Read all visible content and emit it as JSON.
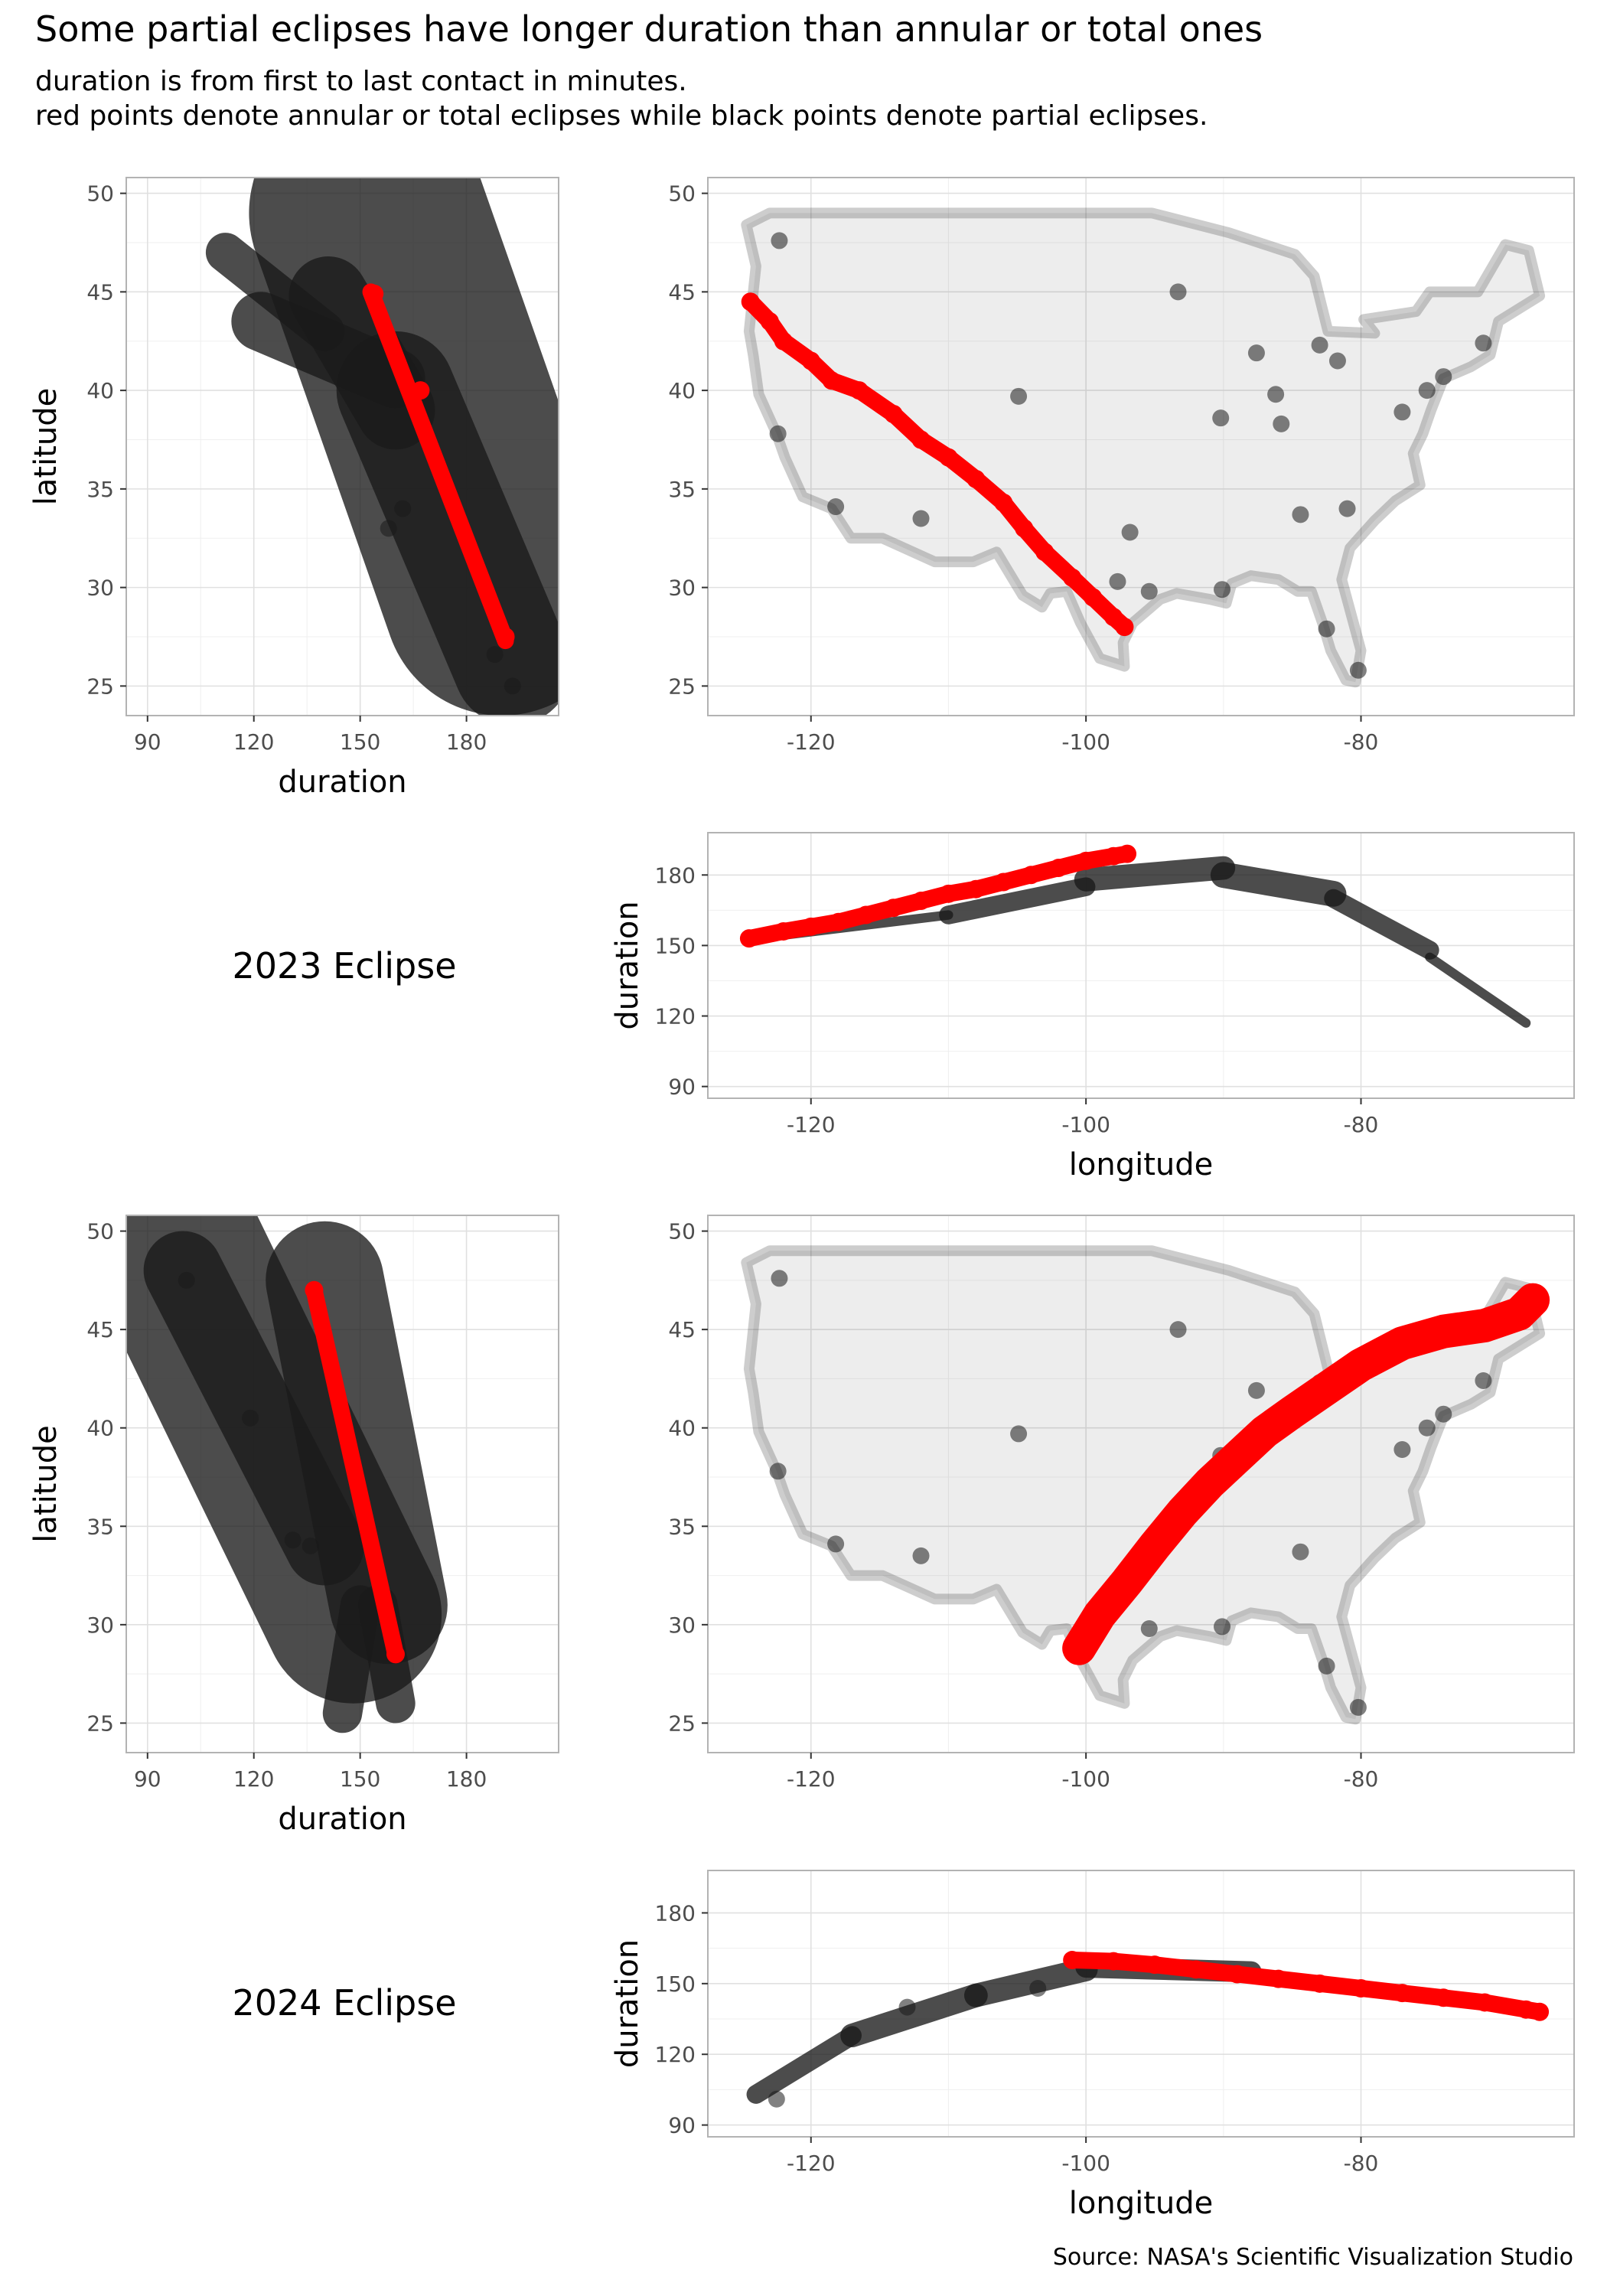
{
  "title": "Some partial eclipses have longer duration than annular or total ones",
  "subtitle": [
    "duration is from first to last contact in minutes.",
    "red points denote annular or total eclipses while black points denote partial eclipses."
  ],
  "caption": "Source: NASA's Scientific Visualization Studio",
  "year_labels": [
    "2023 Eclipse",
    "2024 Eclipse"
  ],
  "colors": {
    "partial": "#1a1a1a",
    "annular_or_total": "#ff0000",
    "grid": "#e0e0e0",
    "panel_border": "#b3b3b3"
  },
  "chart_data": [
    {
      "type": "scatter",
      "eclipse": "2023 Eclipse",
      "x_var": "duration",
      "y_var": "latitude",
      "xlabel": "duration",
      "ylabel": "latitude",
      "xlim": [
        84,
        206
      ],
      "ylim": [
        23.5,
        50.8
      ],
      "xticks": [
        90,
        120,
        150,
        180
      ],
      "yticks": [
        25,
        30,
        35,
        40,
        45,
        50
      ],
      "series": [
        {
          "name": "partial",
          "bands": [
            {
              "a": [
                152,
                49
              ],
              "b": [
                190,
                29.5
              ],
              "width": 12
            },
            {
              "a": [
                141,
                44.8
              ],
              "b": [
                160,
                39
              ],
              "width": 4
            },
            {
              "a": [
                122,
                43.5
              ],
              "b": [
                160,
                40.6
              ],
              "width": 3
            },
            {
              "a": [
                160,
                40
              ],
              "b": [
                193,
                26
              ],
              "width": 6
            },
            {
              "a": [
                112,
                47
              ],
              "b": [
                140,
                43
              ],
              "width": 2
            }
          ],
          "values": [
            [
              162,
              34
            ],
            [
              158,
              33
            ],
            [
              188,
              26.6
            ],
            [
              193,
              25
            ]
          ]
        },
        {
          "name": "annular or total",
          "bands": [
            {
              "a": [
                153,
                45
              ],
              "b": [
                191,
                27.3
              ],
              "width": 3
            }
          ],
          "values": [
            [
              154,
              44.9
            ],
            [
              191,
              27.5
            ],
            [
              167,
              40
            ]
          ]
        }
      ]
    },
    {
      "type": "scatter",
      "eclipse": "2023 Eclipse",
      "x_var": "longitude",
      "y_var": "latitude",
      "xlabel": "",
      "ylabel": "",
      "xlim": [
        -127.5,
        -64.5
      ],
      "ylim": [
        23.5,
        50.8
      ],
      "xticks": [
        -120,
        -100,
        -80
      ],
      "yticks": [
        25,
        30,
        35,
        40,
        45,
        50
      ],
      "series": [
        {
          "name": "partial",
          "region": "contiguous United States",
          "values": [
            [
              -122.3,
              47.6
            ],
            [
              -122.4,
              37.8
            ],
            [
              -118.2,
              34.1
            ],
            [
              -112,
              33.5
            ],
            [
              -104.9,
              39.7
            ],
            [
              -96.8,
              32.8
            ],
            [
              -95.4,
              29.8
            ],
            [
              -97.7,
              30.3
            ],
            [
              -90.2,
              38.6
            ],
            [
              -87.6,
              41.9
            ],
            [
              -86.2,
              39.8
            ],
            [
              -84.4,
              33.7
            ],
            [
              -83,
              42.3
            ],
            [
              -81.7,
              41.5
            ],
            [
              -80.2,
              25.8
            ],
            [
              -75.2,
              40
            ],
            [
              -74,
              40.7
            ],
            [
              -71.1,
              42.4
            ],
            [
              -77,
              38.9
            ],
            [
              -93.3,
              45
            ],
            [
              -90.1,
              29.9
            ],
            [
              -85.8,
              38.3
            ],
            [
              -81,
              34
            ],
            [
              -82.5,
              27.9
            ]
          ]
        },
        {
          "name": "annular or total",
          "values": [
            [
              -124.4,
              44.5
            ],
            [
              -123,
              43.5
            ],
            [
              -122,
              42.5
            ],
            [
              -120,
              41.5
            ],
            [
              -118.5,
              40.5
            ],
            [
              -116.5,
              40
            ],
            [
              -114,
              38.8
            ],
            [
              -112,
              37.5
            ],
            [
              -110,
              36.6
            ],
            [
              -108,
              35.5
            ],
            [
              -106,
              34.3
            ],
            [
              -104.5,
              33
            ],
            [
              -103,
              31.8
            ],
            [
              -101,
              30.5
            ],
            [
              -99.5,
              29.5
            ],
            [
              -98,
              28.5
            ],
            [
              -97.2,
              28
            ]
          ]
        }
      ]
    },
    {
      "type": "scatter",
      "eclipse": "2023 Eclipse",
      "x_var": "longitude",
      "y_var": "duration",
      "xlabel": "longitude",
      "ylabel": "duration",
      "xlim": [
        -127.5,
        -64.5
      ],
      "ylim": [
        85,
        198
      ],
      "xticks": [
        -120,
        -100,
        -80
      ],
      "yticks": [
        90,
        120,
        150,
        180
      ],
      "series": [
        {
          "name": "partial",
          "bands": [
            {
              "a": [
                -124,
                153
              ],
              "b": [
                -110,
                163
              ],
              "width": 4
            },
            {
              "a": [
                -110,
                163
              ],
              "b": [
                -100,
                175
              ],
              "width": 8
            },
            {
              "a": [
                -100,
                178
              ],
              "b": [
                -90,
                183
              ],
              "width": 10
            },
            {
              "a": [
                -90,
                180
              ],
              "b": [
                -82,
                172
              ],
              "width": 11
            },
            {
              "a": [
                -82,
                170
              ],
              "b": [
                -75,
                148
              ],
              "width": 8
            },
            {
              "a": [
                -75,
                145
              ],
              "b": [
                -68,
                117
              ],
              "width": 4
            }
          ]
        },
        {
          "name": "annular or total",
          "values": [
            [
              -124.5,
              153
            ],
            [
              -122,
              156
            ],
            [
              -120,
              158
            ],
            [
              -118,
              160
            ],
            [
              -116,
              163
            ],
            [
              -114,
              166
            ],
            [
              -112,
              169
            ],
            [
              -110,
              172
            ],
            [
              -108,
              174
            ],
            [
              -106,
              177
            ],
            [
              -104,
              180
            ],
            [
              -102,
              183
            ],
            [
              -100,
              186
            ],
            [
              -98,
              188
            ],
            [
              -97,
              189
            ]
          ]
        }
      ]
    },
    {
      "type": "scatter",
      "eclipse": "2024 Eclipse",
      "x_var": "duration",
      "y_var": "latitude",
      "xlabel": "duration",
      "ylabel": "latitude",
      "xlim": [
        84,
        206
      ],
      "ylim": [
        23.5,
        50.8
      ],
      "xticks": [
        90,
        120,
        150,
        180
      ],
      "yticks": [
        25,
        30,
        35,
        40,
        45,
        50
      ],
      "series": [
        {
          "name": "partial",
          "bands": [
            {
              "a": [
                140,
                47.5
              ],
              "b": [
                158,
                31
              ],
              "width": 6
            },
            {
              "a": [
                98,
                49
              ],
              "b": [
                148,
                30.5
              ],
              "width": 9
            },
            {
              "a": [
                100,
                48
              ],
              "b": [
                140,
                34
              ],
              "width": 4
            },
            {
              "a": [
                155,
                31
              ],
              "b": [
                160,
                26
              ],
              "width": 2
            },
            {
              "a": [
                150,
                31
              ],
              "b": [
                145,
                25.5
              ],
              "width": 2
            }
          ],
          "values": [
            [
              101,
              47.5
            ],
            [
              119,
              40.5
            ],
            [
              136,
              34
            ],
            [
              131,
              34.3
            ]
          ]
        },
        {
          "name": "annular or total",
          "bands": [
            {
              "a": [
                137,
                47
              ],
              "b": [
                160,
                28.5
              ],
              "width": 3
            }
          ],
          "values": [
            [
              137,
              47
            ],
            [
              160,
              28.5
            ]
          ]
        }
      ]
    },
    {
      "type": "scatter",
      "eclipse": "2024 Eclipse",
      "x_var": "longitude",
      "y_var": "latitude",
      "xlabel": "",
      "ylabel": "",
      "xlim": [
        -127.5,
        -64.5
      ],
      "ylim": [
        23.5,
        50.8
      ],
      "xticks": [
        -120,
        -100,
        -80
      ],
      "yticks": [
        25,
        30,
        35,
        40,
        45,
        50
      ],
      "series": [
        {
          "name": "partial",
          "region": "contiguous United States",
          "values": [
            [
              -122.3,
              47.6
            ],
            [
              -122.4,
              37.8
            ],
            [
              -118.2,
              34.1
            ],
            [
              -112,
              33.5
            ],
            [
              -104.9,
              39.7
            ],
            [
              -96.8,
              32.8
            ],
            [
              -95.4,
              29.8
            ],
            [
              -90.2,
              38.6
            ],
            [
              -87.6,
              41.9
            ],
            [
              -84.4,
              33.7
            ],
            [
              -83,
              42.3
            ],
            [
              -75.2,
              40
            ],
            [
              -74,
              40.7
            ],
            [
              -71.1,
              42.4
            ],
            [
              -77,
              38.9
            ],
            [
              -93.3,
              45
            ],
            [
              -90.1,
              29.9
            ],
            [
              -80.2,
              25.8
            ],
            [
              -82.5,
              27.9
            ]
          ]
        },
        {
          "name": "annular or total",
          "values": [
            [
              -100.5,
              28.8
            ],
            [
              -99,
              30.5
            ],
            [
              -97,
              32.2
            ],
            [
              -95,
              34
            ],
            [
              -93,
              35.7
            ],
            [
              -91,
              37.2
            ],
            [
              -89,
              38.5
            ],
            [
              -87,
              39.8
            ],
            [
              -85,
              40.8
            ],
            [
              -82.5,
              42
            ],
            [
              -80,
              43.2
            ],
            [
              -77,
              44.3
            ],
            [
              -74,
              44.9
            ],
            [
              -71,
              45.2
            ],
            [
              -68.5,
              45.8
            ],
            [
              -67.5,
              46.5
            ]
          ]
        }
      ]
    },
    {
      "type": "scatter",
      "eclipse": "2024 Eclipse",
      "x_var": "longitude",
      "y_var": "duration",
      "xlabel": "longitude",
      "ylabel": "duration",
      "xlim": [
        -127.5,
        -64.5
      ],
      "ylim": [
        85,
        198
      ],
      "xticks": [
        -120,
        -100,
        -80
      ],
      "yticks": [
        90,
        120,
        150,
        180
      ],
      "series": [
        {
          "name": "partial",
          "bands": [
            {
              "a": [
                -124,
                103
              ],
              "b": [
                -117,
                128
              ],
              "width": 8
            },
            {
              "a": [
                -117,
                128
              ],
              "b": [
                -108,
                145
              ],
              "width": 10
            },
            {
              "a": [
                -108,
                145
              ],
              "b": [
                -100,
                156
              ],
              "width": 10
            },
            {
              "a": [
                -100,
                157
              ],
              "b": [
                -88,
                155
              ],
              "width": 9
            },
            {
              "a": [
                -88,
                154
              ],
              "b": [
                -67,
                139
              ],
              "width": 4
            }
          ],
          "values": [
            [
              -122.5,
              101
            ],
            [
              -113,
              140
            ],
            [
              -103.5,
              148
            ]
          ]
        },
        {
          "name": "annular or total",
          "values": [
            [
              -101,
              160
            ],
            [
              -98,
              159.5
            ],
            [
              -95,
              158
            ],
            [
              -92,
              156
            ],
            [
              -89,
              154
            ],
            [
              -86,
              152
            ],
            [
              -83,
              150
            ],
            [
              -80,
              148
            ],
            [
              -77,
              146
            ],
            [
              -74,
              144
            ],
            [
              -71,
              142
            ],
            [
              -68,
              139
            ],
            [
              -67,
              138
            ]
          ]
        }
      ]
    }
  ]
}
